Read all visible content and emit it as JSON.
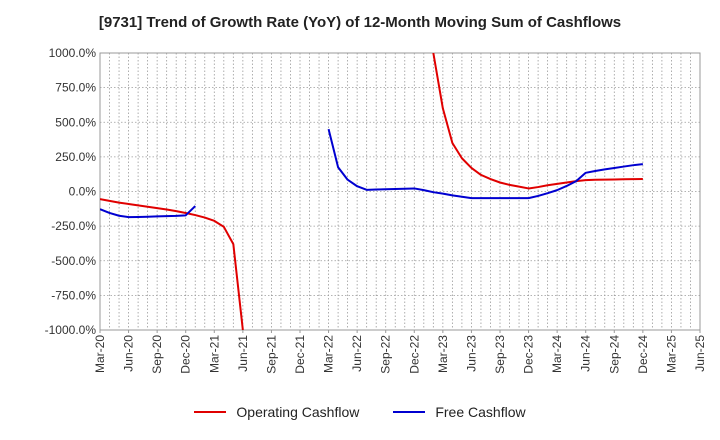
{
  "chart_data": {
    "type": "line",
    "title": "[9731]  Trend of Growth Rate (YoY) of 12-Month Moving Sum of Cashflows",
    "xlabel": "",
    "ylabel": "",
    "ylim": [
      -1000,
      1000
    ],
    "y_ticks": [
      "1000.0%",
      "750.0%",
      "500.0%",
      "250.0%",
      "0.0%",
      "-250.0%",
      "-500.0%",
      "-750.0%",
      "-1000.0%"
    ],
    "y_tick_values": [
      1000,
      750,
      500,
      250,
      0,
      -250,
      -500,
      -750,
      -1000
    ],
    "x_ticks": [
      "Mar-20",
      "Jun-20",
      "Sep-20",
      "Dec-20",
      "Mar-21",
      "Jun-21",
      "Sep-21",
      "Dec-21",
      "Mar-22",
      "Jun-22",
      "Sep-22",
      "Dec-22",
      "Mar-23",
      "Jun-23",
      "Sep-23",
      "Dec-23",
      "Mar-24",
      "Jun-24",
      "Sep-24",
      "Dec-24",
      "Mar-25",
      "Jun-25"
    ],
    "grid": true,
    "legend_position": "bottom",
    "series": [
      {
        "name": "Operating Cashflow",
        "color": "#e00000",
        "segments": [
          [
            [
              "Mar-20",
              -55
            ],
            [
              "Apr-20",
              -68
            ],
            [
              "May-20",
              -80
            ],
            [
              "Jun-20",
              -90
            ],
            [
              "Jul-20",
              -100
            ],
            [
              "Aug-20",
              -110
            ],
            [
              "Sep-20",
              -120
            ],
            [
              "Oct-20",
              -130
            ],
            [
              "Nov-20",
              -142
            ],
            [
              "Dec-20",
              -155
            ],
            [
              "Jan-21",
              -170
            ],
            [
              "Feb-21",
              -188
            ],
            [
              "Mar-21",
              -212
            ],
            [
              "Apr-21",
              -255
            ],
            [
              "May-21",
              -380
            ],
            [
              "Jun-21",
              -1000
            ]
          ],
          [
            [
              "Feb-23",
              1000
            ],
            [
              "Mar-23",
              600
            ],
            [
              "Apr-23",
              350
            ],
            [
              "May-23",
              240
            ],
            [
              "Jun-23",
              170
            ],
            [
              "Jul-23",
              120
            ],
            [
              "Aug-23",
              90
            ],
            [
              "Sep-23",
              65
            ],
            [
              "Oct-23",
              48
            ],
            [
              "Nov-23",
              35
            ],
            [
              "Dec-23",
              22
            ],
            [
              "Jan-24",
              32
            ],
            [
              "Feb-24",
              45
            ],
            [
              "Mar-24",
              55
            ],
            [
              "Apr-24",
              65
            ],
            [
              "May-24",
              75
            ],
            [
              "Jun-24",
              82
            ],
            [
              "Jul-24",
              85
            ],
            [
              "Aug-24",
              86
            ],
            [
              "Sep-24",
              87
            ],
            [
              "Oct-24",
              88
            ],
            [
              "Nov-24",
              89
            ],
            [
              "Dec-24",
              90
            ]
          ]
        ]
      },
      {
        "name": "Free Cashflow",
        "color": "#0000d0",
        "segments": [
          [
            [
              "Mar-20",
              -128
            ],
            [
              "Apr-20",
              -155
            ],
            [
              "May-20",
              -175
            ],
            [
              "Jun-20",
              -185
            ],
            [
              "Jul-20",
              -184
            ],
            [
              "Aug-20",
              -182
            ],
            [
              "Sep-20",
              -180
            ],
            [
              "Oct-20",
              -178
            ],
            [
              "Nov-20",
              -176
            ],
            [
              "Dec-20",
              -172
            ],
            [
              "Jan-21",
              -105
            ]
          ],
          [
            [
              "Mar-22",
              450
            ],
            [
              "Apr-22",
              175
            ],
            [
              "May-22",
              85
            ],
            [
              "Jun-22",
              38
            ],
            [
              "Jul-22",
              12
            ],
            [
              "Aug-22",
              14
            ],
            [
              "Sep-22",
              16
            ],
            [
              "Oct-22",
              18
            ],
            [
              "Nov-22",
              20
            ],
            [
              "Dec-22",
              22
            ],
            [
              "Jan-23",
              10
            ],
            [
              "Feb-23",
              -5
            ],
            [
              "Mar-23",
              -15
            ],
            [
              "Apr-23",
              -28
            ],
            [
              "May-23",
              -38
            ],
            [
              "Jun-23",
              -48
            ],
            [
              "Jul-23",
              -48
            ],
            [
              "Aug-23",
              -48
            ],
            [
              "Sep-23",
              -48
            ],
            [
              "Oct-23",
              -48
            ],
            [
              "Nov-23",
              -48
            ],
            [
              "Dec-23",
              -48
            ],
            [
              "Jan-24",
              -32
            ],
            [
              "Feb-24",
              -12
            ],
            [
              "Mar-24",
              10
            ],
            [
              "Apr-24",
              40
            ],
            [
              "May-24",
              75
            ],
            [
              "Jun-24",
              135
            ],
            [
              "Jul-24",
              148
            ],
            [
              "Aug-24",
              160
            ],
            [
              "Sep-24",
              170
            ],
            [
              "Oct-24",
              180
            ],
            [
              "Nov-24",
              190
            ],
            [
              "Dec-24",
              198
            ]
          ]
        ]
      }
    ]
  }
}
